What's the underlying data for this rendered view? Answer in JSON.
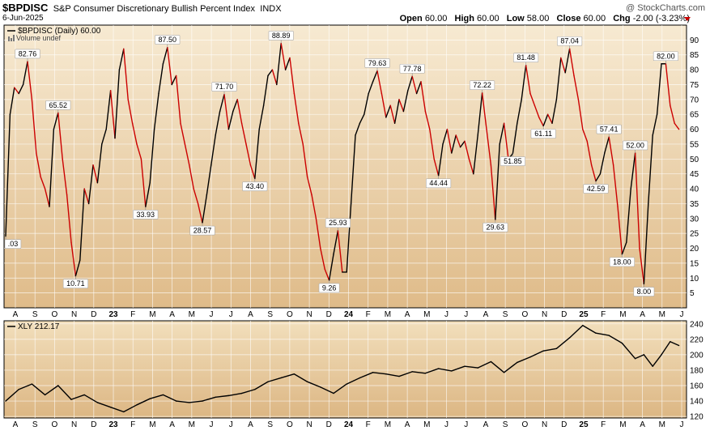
{
  "header": {
    "symbol": "$BPDISC",
    "description": "S&P Consumer Discretionary Bullish Percent Index",
    "exchange": "INDX",
    "date": "6-Jun-2025",
    "watermark": "@ StockCharts.com",
    "open_label": "Open",
    "open": "60.00",
    "high_label": "High",
    "high": "60.00",
    "low_label": "Low",
    "low": "58.00",
    "close_label": "Close",
    "close": "60.00",
    "chg_label": "Chg",
    "chg": "-2.00 (-3.23%)"
  },
  "colors": {
    "up": "#000000",
    "down": "#cc0000",
    "panel_top": "#f5e6c8",
    "panel_bottom": "#e2be8c",
    "grid": "#ffffff"
  },
  "chart_data": [
    {
      "type": "line",
      "legend": [
        "$BPDISC (Daily) 60.00",
        "Volume undef"
      ],
      "ylim": [
        0,
        95
      ],
      "y_ticks": [
        5,
        10,
        15,
        20,
        25,
        30,
        35,
        40,
        45,
        50,
        55,
        60,
        65,
        70,
        75,
        80,
        85,
        90
      ],
      "x_labels": [
        "A",
        "S",
        "O",
        "N",
        "D",
        "23",
        "F",
        "M",
        "A",
        "M",
        "J",
        "J",
        "A",
        "S",
        "O",
        "N",
        "D",
        "24",
        "F",
        "M",
        "A",
        "M",
        "J",
        "J",
        "A",
        "S",
        "O",
        "N",
        "D",
        "25",
        "F",
        "M",
        "A",
        "M",
        "J"
      ],
      "points": [
        {
          "x": 0,
          "y": 24.03
        },
        {
          "x": 1,
          "y": 65
        },
        {
          "x": 2,
          "y": 74
        },
        {
          "x": 3,
          "y": 72
        },
        {
          "x": 4,
          "y": 75
        },
        {
          "x": 5,
          "y": 82.76
        },
        {
          "x": 6,
          "y": 70
        },
        {
          "x": 7,
          "y": 52
        },
        {
          "x": 8,
          "y": 44
        },
        {
          "x": 9,
          "y": 40
        },
        {
          "x": 10,
          "y": 34
        },
        {
          "x": 11,
          "y": 60
        },
        {
          "x": 12,
          "y": 65.52
        },
        {
          "x": 13,
          "y": 50
        },
        {
          "x": 14,
          "y": 38
        },
        {
          "x": 15,
          "y": 22
        },
        {
          "x": 16,
          "y": 10.71
        },
        {
          "x": 17,
          "y": 16
        },
        {
          "x": 18,
          "y": 40
        },
        {
          "x": 19,
          "y": 35
        },
        {
          "x": 20,
          "y": 48
        },
        {
          "x": 21,
          "y": 42
        },
        {
          "x": 22,
          "y": 55
        },
        {
          "x": 23,
          "y": 60
        },
        {
          "x": 24,
          "y": 73
        },
        {
          "x": 25,
          "y": 57
        },
        {
          "x": 26,
          "y": 80
        },
        {
          "x": 27,
          "y": 87
        },
        {
          "x": 28,
          "y": 70
        },
        {
          "x": 29,
          "y": 62
        },
        {
          "x": 30,
          "y": 55
        },
        {
          "x": 31,
          "y": 50
        },
        {
          "x": 32,
          "y": 33.93
        },
        {
          "x": 33,
          "y": 42
        },
        {
          "x": 34,
          "y": 60
        },
        {
          "x": 35,
          "y": 72
        },
        {
          "x": 36,
          "y": 82
        },
        {
          "x": 37,
          "y": 87.5
        },
        {
          "x": 38,
          "y": 75
        },
        {
          "x": 39,
          "y": 78
        },
        {
          "x": 40,
          "y": 62
        },
        {
          "x": 41,
          "y": 55
        },
        {
          "x": 42,
          "y": 48
        },
        {
          "x": 43,
          "y": 40
        },
        {
          "x": 44,
          "y": 35
        },
        {
          "x": 45,
          "y": 28.57
        },
        {
          "x": 46,
          "y": 38
        },
        {
          "x": 47,
          "y": 48
        },
        {
          "x": 48,
          "y": 58
        },
        {
          "x": 49,
          "y": 66
        },
        {
          "x": 50,
          "y": 71.7
        },
        {
          "x": 51,
          "y": 60
        },
        {
          "x": 52,
          "y": 66
        },
        {
          "x": 53,
          "y": 70
        },
        {
          "x": 54,
          "y": 62
        },
        {
          "x": 55,
          "y": 55
        },
        {
          "x": 56,
          "y": 48
        },
        {
          "x": 57,
          "y": 43.4
        },
        {
          "x": 58,
          "y": 60
        },
        {
          "x": 59,
          "y": 68
        },
        {
          "x": 60,
          "y": 78
        },
        {
          "x": 61,
          "y": 80
        },
        {
          "x": 62,
          "y": 75
        },
        {
          "x": 63,
          "y": 88.89
        },
        {
          "x": 64,
          "y": 80
        },
        {
          "x": 65,
          "y": 84
        },
        {
          "x": 66,
          "y": 72
        },
        {
          "x": 67,
          "y": 62
        },
        {
          "x": 68,
          "y": 55
        },
        {
          "x": 69,
          "y": 44
        },
        {
          "x": 70,
          "y": 38
        },
        {
          "x": 71,
          "y": 30
        },
        {
          "x": 72,
          "y": 20
        },
        {
          "x": 73,
          "y": 13
        },
        {
          "x": 74,
          "y": 9.26
        },
        {
          "x": 75,
          "y": 18
        },
        {
          "x": 76,
          "y": 25.93
        },
        {
          "x": 77,
          "y": 12
        },
        {
          "x": 78,
          "y": 12
        },
        {
          "x": 79,
          "y": 35
        },
        {
          "x": 80,
          "y": 58
        },
        {
          "x": 81,
          "y": 62
        },
        {
          "x": 82,
          "y": 65
        },
        {
          "x": 83,
          "y": 72
        },
        {
          "x": 84,
          "y": 76
        },
        {
          "x": 85,
          "y": 79.63
        },
        {
          "x": 86,
          "y": 72
        },
        {
          "x": 87,
          "y": 64
        },
        {
          "x": 88,
          "y": 68
        },
        {
          "x": 89,
          "y": 62
        },
        {
          "x": 90,
          "y": 70
        },
        {
          "x": 91,
          "y": 66
        },
        {
          "x": 92,
          "y": 73
        },
        {
          "x": 93,
          "y": 77.78
        },
        {
          "x": 94,
          "y": 72
        },
        {
          "x": 95,
          "y": 76
        },
        {
          "x": 96,
          "y": 66
        },
        {
          "x": 97,
          "y": 60
        },
        {
          "x": 98,
          "y": 50
        },
        {
          "x": 99,
          "y": 44.44
        },
        {
          "x": 100,
          "y": 55
        },
        {
          "x": 101,
          "y": 60
        },
        {
          "x": 102,
          "y": 52
        },
        {
          "x": 103,
          "y": 58
        },
        {
          "x": 104,
          "y": 54
        },
        {
          "x": 105,
          "y": 56
        },
        {
          "x": 106,
          "y": 50
        },
        {
          "x": 107,
          "y": 45
        },
        {
          "x": 108,
          "y": 58
        },
        {
          "x": 109,
          "y": 72.22
        },
        {
          "x": 110,
          "y": 60
        },
        {
          "x": 111,
          "y": 48
        },
        {
          "x": 112,
          "y": 29.63
        },
        {
          "x": 113,
          "y": 55
        },
        {
          "x": 114,
          "y": 62
        },
        {
          "x": 115,
          "y": 50
        },
        {
          "x": 116,
          "y": 51.85
        },
        {
          "x": 117,
          "y": 62
        },
        {
          "x": 118,
          "y": 70
        },
        {
          "x": 119,
          "y": 81.48
        },
        {
          "x": 120,
          "y": 72
        },
        {
          "x": 121,
          "y": 68
        },
        {
          "x": 122,
          "y": 64
        },
        {
          "x": 123,
          "y": 61.11
        },
        {
          "x": 124,
          "y": 65
        },
        {
          "x": 125,
          "y": 62
        },
        {
          "x": 126,
          "y": 70
        },
        {
          "x": 127,
          "y": 84
        },
        {
          "x": 128,
          "y": 79
        },
        {
          "x": 129,
          "y": 87.04
        },
        {
          "x": 130,
          "y": 78
        },
        {
          "x": 131,
          "y": 70
        },
        {
          "x": 132,
          "y": 60
        },
        {
          "x": 133,
          "y": 56
        },
        {
          "x": 134,
          "y": 48
        },
        {
          "x": 135,
          "y": 42.59
        },
        {
          "x": 136,
          "y": 45
        },
        {
          "x": 137,
          "y": 52
        },
        {
          "x": 138,
          "y": 57.41
        },
        {
          "x": 139,
          "y": 48
        },
        {
          "x": 140,
          "y": 34
        },
        {
          "x": 141,
          "y": 18
        },
        {
          "x": 142,
          "y": 22
        },
        {
          "x": 143,
          "y": 40
        },
        {
          "x": 144,
          "y": 52
        },
        {
          "x": 145,
          "y": 20
        },
        {
          "x": 146,
          "y": 8
        },
        {
          "x": 147,
          "y": 35
        },
        {
          "x": 148,
          "y": 58
        },
        {
          "x": 149,
          "y": 65
        },
        {
          "x": 150,
          "y": 82
        },
        {
          "x": 151,
          "y": 82
        },
        {
          "x": 152,
          "y": 68
        },
        {
          "x": 153,
          "y": 62
        },
        {
          "x": 154,
          "y": 60
        }
      ],
      "annotations": [
        {
          "x": 0,
          "y": 24.03,
          "text": ".03"
        },
        {
          "x": 5,
          "y": 82.76,
          "text": "82.76"
        },
        {
          "x": 12,
          "y": 65.52,
          "text": "65.52"
        },
        {
          "x": 16,
          "y": 10.71,
          "text": "10.71"
        },
        {
          "x": 32,
          "y": 33.93,
          "text": "33.93"
        },
        {
          "x": 37,
          "y": 87.5,
          "text": "87.50"
        },
        {
          "x": 45,
          "y": 28.57,
          "text": "28.57"
        },
        {
          "x": 50,
          "y": 71.7,
          "text": "71.70"
        },
        {
          "x": 57,
          "y": 43.4,
          "text": "43.40"
        },
        {
          "x": 63,
          "y": 88.89,
          "text": "88.89"
        },
        {
          "x": 74,
          "y": 9.26,
          "text": "9.26"
        },
        {
          "x": 76,
          "y": 25.93,
          "text": "25.93"
        },
        {
          "x": 85,
          "y": 79.63,
          "text": "79.63"
        },
        {
          "x": 93,
          "y": 77.78,
          "text": "77.78"
        },
        {
          "x": 99,
          "y": 44.44,
          "text": "44.44"
        },
        {
          "x": 109,
          "y": 72.22,
          "text": "72.22"
        },
        {
          "x": 112,
          "y": 29.63,
          "text": "29.63"
        },
        {
          "x": 116,
          "y": 51.85,
          "text": "51.85"
        },
        {
          "x": 119,
          "y": 81.48,
          "text": "81.48"
        },
        {
          "x": 123,
          "y": 61.11,
          "text": "61.11"
        },
        {
          "x": 129,
          "y": 87.04,
          "text": "87.04"
        },
        {
          "x": 135,
          "y": 42.59,
          "text": "42.59"
        },
        {
          "x": 138,
          "y": 57.41,
          "text": "57.41"
        },
        {
          "x": 141,
          "y": 18,
          "text": "18.00"
        },
        {
          "x": 144,
          "y": 52,
          "text": "52.00"
        },
        {
          "x": 146,
          "y": 8,
          "text": "8.00"
        },
        {
          "x": 151,
          "y": 82,
          "text": "82.00"
        }
      ]
    },
    {
      "type": "line",
      "legend": [
        "XLY 212.17"
      ],
      "ylim": [
        118,
        244
      ],
      "y_ticks": [
        120,
        140,
        160,
        180,
        200,
        220,
        240
      ],
      "x_labels": [
        "A",
        "S",
        "O",
        "N",
        "D",
        "23",
        "F",
        "M",
        "A",
        "M",
        "J",
        "J",
        "A",
        "S",
        "O",
        "N",
        "D",
        "24",
        "F",
        "M",
        "A",
        "M",
        "J",
        "J",
        "A",
        "S",
        "O",
        "N",
        "D",
        "25",
        "F",
        "M",
        "A",
        "M",
        "J"
      ],
      "points": [
        {
          "x": 0,
          "y": 140
        },
        {
          "x": 3,
          "y": 155
        },
        {
          "x": 6,
          "y": 162
        },
        {
          "x": 9,
          "y": 148
        },
        {
          "x": 12,
          "y": 160
        },
        {
          "x": 15,
          "y": 142
        },
        {
          "x": 18,
          "y": 148
        },
        {
          "x": 21,
          "y": 138
        },
        {
          "x": 24,
          "y": 132
        },
        {
          "x": 27,
          "y": 126
        },
        {
          "x": 30,
          "y": 135
        },
        {
          "x": 33,
          "y": 143
        },
        {
          "x": 36,
          "y": 148
        },
        {
          "x": 39,
          "y": 140
        },
        {
          "x": 42,
          "y": 138
        },
        {
          "x": 45,
          "y": 140
        },
        {
          "x": 48,
          "y": 145
        },
        {
          "x": 51,
          "y": 147
        },
        {
          "x": 54,
          "y": 150
        },
        {
          "x": 57,
          "y": 155
        },
        {
          "x": 60,
          "y": 165
        },
        {
          "x": 63,
          "y": 170
        },
        {
          "x": 66,
          "y": 175
        },
        {
          "x": 69,
          "y": 165
        },
        {
          "x": 72,
          "y": 158
        },
        {
          "x": 75,
          "y": 150
        },
        {
          "x": 78,
          "y": 162
        },
        {
          "x": 81,
          "y": 170
        },
        {
          "x": 84,
          "y": 177
        },
        {
          "x": 87,
          "y": 175
        },
        {
          "x": 90,
          "y": 172
        },
        {
          "x": 93,
          "y": 178
        },
        {
          "x": 96,
          "y": 176
        },
        {
          "x": 99,
          "y": 182
        },
        {
          "x": 102,
          "y": 179
        },
        {
          "x": 105,
          "y": 185
        },
        {
          "x": 108,
          "y": 183
        },
        {
          "x": 111,
          "y": 191
        },
        {
          "x": 114,
          "y": 177
        },
        {
          "x": 117,
          "y": 190
        },
        {
          "x": 120,
          "y": 197
        },
        {
          "x": 123,
          "y": 205
        },
        {
          "x": 126,
          "y": 208
        },
        {
          "x": 129,
          "y": 222
        },
        {
          "x": 132,
          "y": 238
        },
        {
          "x": 135,
          "y": 228
        },
        {
          "x": 138,
          "y": 225
        },
        {
          "x": 141,
          "y": 215
        },
        {
          "x": 144,
          "y": 195
        },
        {
          "x": 146,
          "y": 200
        },
        {
          "x": 148,
          "y": 185
        },
        {
          "x": 150,
          "y": 200
        },
        {
          "x": 152,
          "y": 217
        },
        {
          "x": 154,
          "y": 212
        }
      ]
    }
  ]
}
